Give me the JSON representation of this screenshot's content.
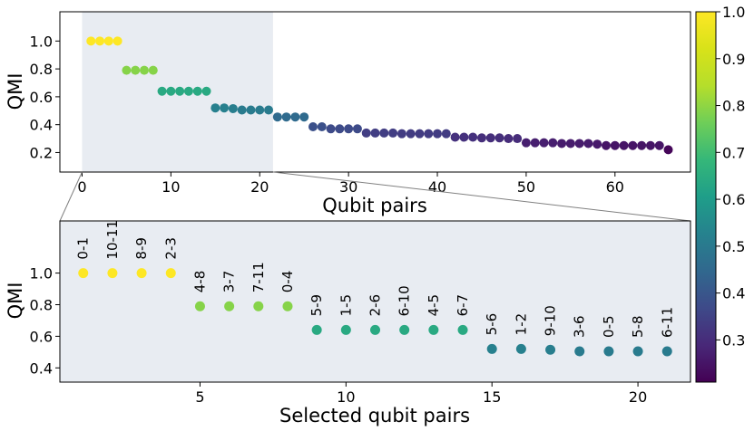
{
  "chart_data": [
    {
      "type": "scatter",
      "xlabel": "Qubit pairs",
      "ylabel": "QMI",
      "xlim": [
        -2.5,
        68.5
      ],
      "ylim": [
        0.06,
        1.21
      ],
      "xticks": [
        0,
        10,
        20,
        30,
        40,
        50,
        60
      ],
      "yticks": [
        0.2,
        0.4,
        0.6,
        0.8,
        1.0
      ],
      "highlight_x_range": [
        0,
        21.5
      ],
      "x": [
        1,
        2,
        3,
        4,
        5,
        6,
        7,
        8,
        9,
        10,
        11,
        12,
        13,
        14,
        15,
        16,
        17,
        18,
        19,
        20,
        21,
        22,
        23,
        24,
        25,
        26,
        27,
        28,
        29,
        30,
        31,
        32,
        33,
        34,
        35,
        36,
        37,
        38,
        39,
        40,
        41,
        42,
        43,
        44,
        45,
        46,
        47,
        48,
        49,
        50,
        51,
        52,
        53,
        54,
        55,
        56,
        57,
        58,
        59,
        60,
        61,
        62,
        63,
        64,
        65,
        66
      ],
      "y": [
        1.0,
        1.0,
        1.0,
        1.0,
        0.79,
        0.79,
        0.79,
        0.79,
        0.64,
        0.64,
        0.64,
        0.64,
        0.64,
        0.64,
        0.52,
        0.52,
        0.515,
        0.505,
        0.505,
        0.505,
        0.505,
        0.455,
        0.455,
        0.455,
        0.455,
        0.385,
        0.385,
        0.37,
        0.37,
        0.37,
        0.37,
        0.34,
        0.34,
        0.34,
        0.34,
        0.335,
        0.335,
        0.335,
        0.335,
        0.335,
        0.335,
        0.31,
        0.31,
        0.31,
        0.305,
        0.305,
        0.305,
        0.3,
        0.3,
        0.27,
        0.27,
        0.27,
        0.27,
        0.265,
        0.265,
        0.265,
        0.265,
        0.26,
        0.25,
        0.25,
        0.25,
        0.25,
        0.25,
        0.25,
        0.25,
        0.22
      ],
      "grid": false
    },
    {
      "type": "scatter",
      "xlabel": "Selected qubit pairs",
      "ylabel": "QMI",
      "xlim": [
        0.2,
        21.8
      ],
      "ylim": [
        0.31,
        1.33
      ],
      "xticks": [
        5,
        10,
        15,
        20
      ],
      "yticks": [
        0.4,
        0.6,
        0.8,
        1.0
      ],
      "x": [
        1,
        2,
        3,
        4,
        5,
        6,
        7,
        8,
        9,
        10,
        11,
        12,
        13,
        14,
        15,
        16,
        17,
        18,
        19,
        20,
        21
      ],
      "y": [
        1.0,
        1.0,
        1.0,
        1.0,
        0.79,
        0.79,
        0.79,
        0.79,
        0.64,
        0.64,
        0.64,
        0.64,
        0.64,
        0.64,
        0.52,
        0.52,
        0.515,
        0.505,
        0.505,
        0.505,
        0.505
      ],
      "point_labels": [
        "0-1",
        "10-11",
        "8-9",
        "2-3",
        "4-8",
        "3-7",
        "7-11",
        "0-4",
        "5-9",
        "1-5",
        "2-6",
        "6-10",
        "4-5",
        "6-7",
        "5-6",
        "1-2",
        "9-10",
        "3-6",
        "0-5",
        "5-8",
        "6-11"
      ],
      "grid": false
    }
  ],
  "colorbar": {
    "colormap": "viridis",
    "range": [
      0.21,
      1.0
    ],
    "ticks": [
      0.3,
      0.4,
      0.5,
      0.6,
      0.7,
      0.8,
      0.9,
      1.0
    ]
  },
  "colors": {
    "highlight": "#e8ecf2",
    "connector": "#808080"
  }
}
